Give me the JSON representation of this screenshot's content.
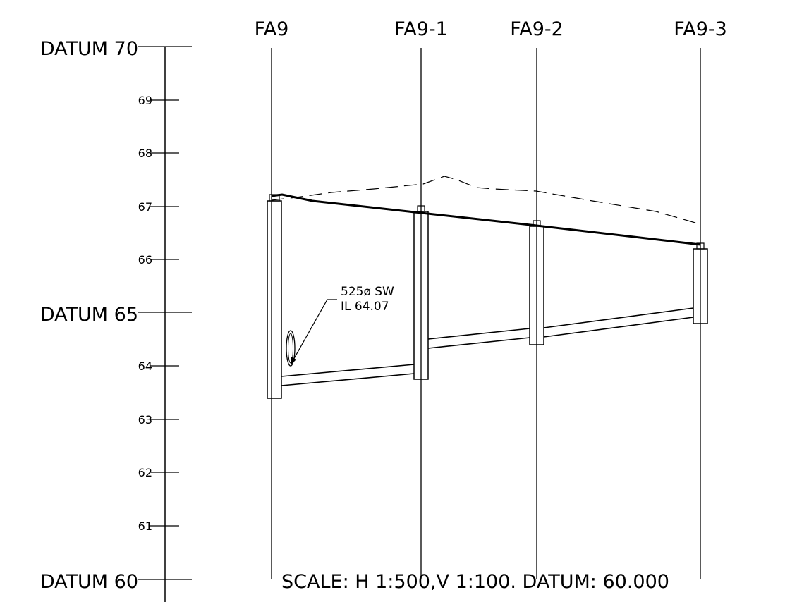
{
  "datum_labels": [
    "DATUM 70",
    "DATUM 65",
    "DATUM 60"
  ],
  "tick_labels": [
    "69",
    "68",
    "67",
    "66",
    "64",
    "63",
    "62",
    "61"
  ],
  "manholes": [
    "FA9",
    "FA9-1",
    "FA9-2",
    "FA9-3"
  ],
  "pipe_annotation": {
    "line1": "525ø SW",
    "line2": "IL 64.07"
  },
  "scale_note": "SCALE: H 1:500,V 1:100. DATUM: 60.000",
  "vertical_axis": {
    "min": 60,
    "max": 70
  }
}
